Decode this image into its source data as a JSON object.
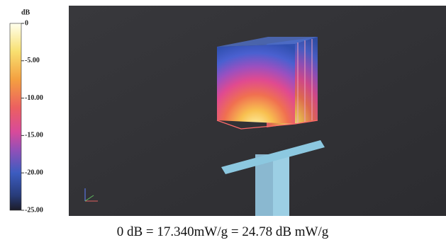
{
  "colorbar": {
    "unit": "dB",
    "range": [
      -25,
      0
    ],
    "ticks": [
      {
        "value": 0,
        "label": "0"
      },
      {
        "value": -5,
        "label": "-5.00"
      },
      {
        "value": -10,
        "label": "-10.00"
      },
      {
        "value": -15,
        "label": "-15.00"
      },
      {
        "value": -20,
        "label": "-20.00"
      },
      {
        "value": -25,
        "label": "-25.00"
      }
    ]
  },
  "caption": "0 dB = 17.340mW/g = 24.78 dB mW/g"
}
